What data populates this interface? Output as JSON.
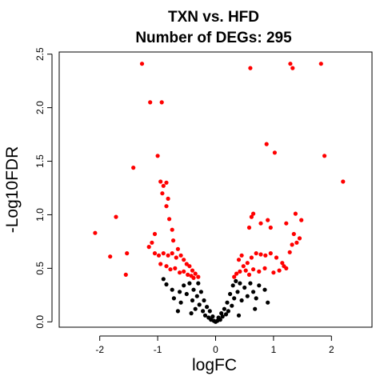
{
  "chart_data": {
    "type": "scatter",
    "title_line1": "TXN vs. HFD",
    "title_line2": "Number of DEGs:  295",
    "xlabel": "logFC",
    "ylabel": "-Log10FDR",
    "xlim": [
      -2.7,
      2.7
    ],
    "ylim": [
      -0.05,
      2.52
    ],
    "x_ticks": [
      -2,
      -1,
      0,
      1,
      2
    ],
    "x_tick_labels": [
      "-2",
      "-1",
      "0",
      "1",
      "2"
    ],
    "y_ticks": [
      0.0,
      0.5,
      1.0,
      1.5,
      2.0,
      2.5
    ],
    "y_tick_labels": [
      "0.0",
      "0.5",
      "1.0",
      "1.5",
      "2.0",
      "2.5"
    ],
    "grid": false,
    "legend": "none",
    "significance_threshold": 0.4,
    "colors": {
      "significant": "#ff0000",
      "not_significant": "#000000"
    },
    "series": [
      {
        "color": "#ff0000",
        "points": [
          [
            -2.08,
            0.83
          ],
          [
            -1.82,
            0.61
          ],
          [
            -1.72,
            0.98
          ],
          [
            -1.55,
            0.44
          ],
          [
            -1.53,
            0.64
          ],
          [
            -1.42,
            1.44
          ],
          [
            -1.27,
            2.41
          ],
          [
            -1.13,
            2.05
          ],
          [
            -0.93,
            2.05
          ],
          [
            -1.0,
            1.55
          ],
          [
            -1.15,
            0.7
          ],
          [
            -1.1,
            0.74
          ],
          [
            -1.05,
            0.82
          ],
          [
            -0.95,
            1.31
          ],
          [
            -0.9,
            1.27
          ],
          [
            -0.92,
            1.2
          ],
          [
            -0.85,
            1.3
          ],
          [
            -0.82,
            1.15
          ],
          [
            -0.85,
            1.08
          ],
          [
            -0.8,
            0.96
          ],
          [
            -0.75,
            0.86
          ],
          [
            -0.73,
            0.76
          ],
          [
            -0.65,
            0.68
          ],
          [
            -0.6,
            0.62
          ],
          [
            -0.55,
            0.58
          ],
          [
            -0.5,
            0.54
          ],
          [
            -0.45,
            0.52
          ],
          [
            -0.4,
            0.48
          ],
          [
            -0.35,
            0.45
          ],
          [
            -0.3,
            0.42
          ],
          [
            -1.05,
            0.64
          ],
          [
            -0.98,
            0.62
          ],
          [
            -0.9,
            0.64
          ],
          [
            -0.82,
            0.62
          ],
          [
            -0.75,
            0.64
          ],
          [
            -0.68,
            0.6
          ],
          [
            -0.95,
            0.54
          ],
          [
            -0.85,
            0.52
          ],
          [
            -0.78,
            0.49
          ],
          [
            -0.7,
            0.5
          ],
          [
            -0.62,
            0.46
          ],
          [
            -0.55,
            0.47
          ],
          [
            -0.48,
            0.44
          ],
          [
            -0.42,
            0.43
          ],
          [
            -0.38,
            0.41
          ],
          [
            0.32,
            0.42
          ],
          [
            0.36,
            0.45
          ],
          [
            0.42,
            0.47
          ],
          [
            0.48,
            0.52
          ],
          [
            0.55,
            0.55
          ],
          [
            0.62,
            0.6
          ],
          [
            0.7,
            0.64
          ],
          [
            0.78,
            0.63
          ],
          [
            0.86,
            0.62
          ],
          [
            0.95,
            0.64
          ],
          [
            1.05,
            0.6
          ],
          [
            1.15,
            0.55
          ],
          [
            1.22,
            0.5
          ],
          [
            0.6,
            2.37
          ],
          [
            1.29,
            2.41
          ],
          [
            1.33,
            2.37
          ],
          [
            1.82,
            2.41
          ],
          [
            0.88,
            1.66
          ],
          [
            1.02,
            1.58
          ],
          [
            1.88,
            1.55
          ],
          [
            2.2,
            1.31
          ],
          [
            0.62,
            0.98
          ],
          [
            0.65,
            1.01
          ],
          [
            0.58,
            0.88
          ],
          [
            0.9,
            0.95
          ],
          [
            0.78,
            0.92
          ],
          [
            0.95,
            0.88
          ],
          [
            1.22,
            0.92
          ],
          [
            1.38,
            1.01
          ],
          [
            1.48,
            0.95
          ],
          [
            1.35,
            0.82
          ],
          [
            1.32,
            0.72
          ],
          [
            1.28,
            0.65
          ],
          [
            1.4,
            0.74
          ],
          [
            1.45,
            0.78
          ],
          [
            0.45,
            0.62
          ],
          [
            0.4,
            0.58
          ],
          [
            0.52,
            0.48
          ],
          [
            0.65,
            0.49
          ],
          [
            0.75,
            0.47
          ],
          [
            0.85,
            0.5
          ],
          [
            1.0,
            0.46
          ],
          [
            1.1,
            0.48
          ],
          [
            1.18,
            0.52
          ],
          [
            0.58,
            0.44
          ]
        ]
      },
      {
        "color": "#000000",
        "points": [
          [
            -0.9,
            0.4
          ],
          [
            -0.85,
            0.35
          ],
          [
            -0.75,
            0.3
          ],
          [
            -0.72,
            0.22
          ],
          [
            -0.62,
            0.28
          ],
          [
            -0.6,
            0.18
          ],
          [
            -0.55,
            0.34
          ],
          [
            -0.5,
            0.26
          ],
          [
            -0.45,
            0.36
          ],
          [
            -0.4,
            0.2
          ],
          [
            -0.38,
            0.3
          ],
          [
            -0.35,
            0.12
          ],
          [
            -0.32,
            0.24
          ],
          [
            -0.3,
            0.36
          ],
          [
            -0.28,
            0.16
          ],
          [
            -0.25,
            0.28
          ],
          [
            -0.22,
            0.1
          ],
          [
            -0.2,
            0.2
          ],
          [
            -0.18,
            0.06
          ],
          [
            -0.15,
            0.14
          ],
          [
            -0.12,
            0.04
          ],
          [
            -0.1,
            0.1
          ],
          [
            -0.08,
            0.02
          ],
          [
            -0.05,
            0.05
          ],
          [
            -0.03,
            0.01
          ],
          [
            0.0,
            0.0
          ],
          [
            0.03,
            0.01
          ],
          [
            0.05,
            0.04
          ],
          [
            0.08,
            0.02
          ],
          [
            0.1,
            0.08
          ],
          [
            0.12,
            0.05
          ],
          [
            0.15,
            0.12
          ],
          [
            0.18,
            0.07
          ],
          [
            0.2,
            0.18
          ],
          [
            0.22,
            0.1
          ],
          [
            0.25,
            0.26
          ],
          [
            0.28,
            0.15
          ],
          [
            0.3,
            0.34
          ],
          [
            0.32,
            0.22
          ],
          [
            0.35,
            0.38
          ],
          [
            0.38,
            0.28
          ],
          [
            0.42,
            0.36
          ],
          [
            0.45,
            0.2
          ],
          [
            0.5,
            0.32
          ],
          [
            0.55,
            0.24
          ],
          [
            0.6,
            0.36
          ],
          [
            0.65,
            0.28
          ],
          [
            0.7,
            0.22
          ],
          [
            0.75,
            0.34
          ],
          [
            0.85,
            0.3
          ],
          [
            0.9,
            0.18
          ],
          [
            -0.65,
            0.1
          ],
          [
            0.68,
            0.12
          ],
          [
            -0.42,
            0.08
          ],
          [
            0.4,
            0.06
          ]
        ]
      }
    ]
  }
}
